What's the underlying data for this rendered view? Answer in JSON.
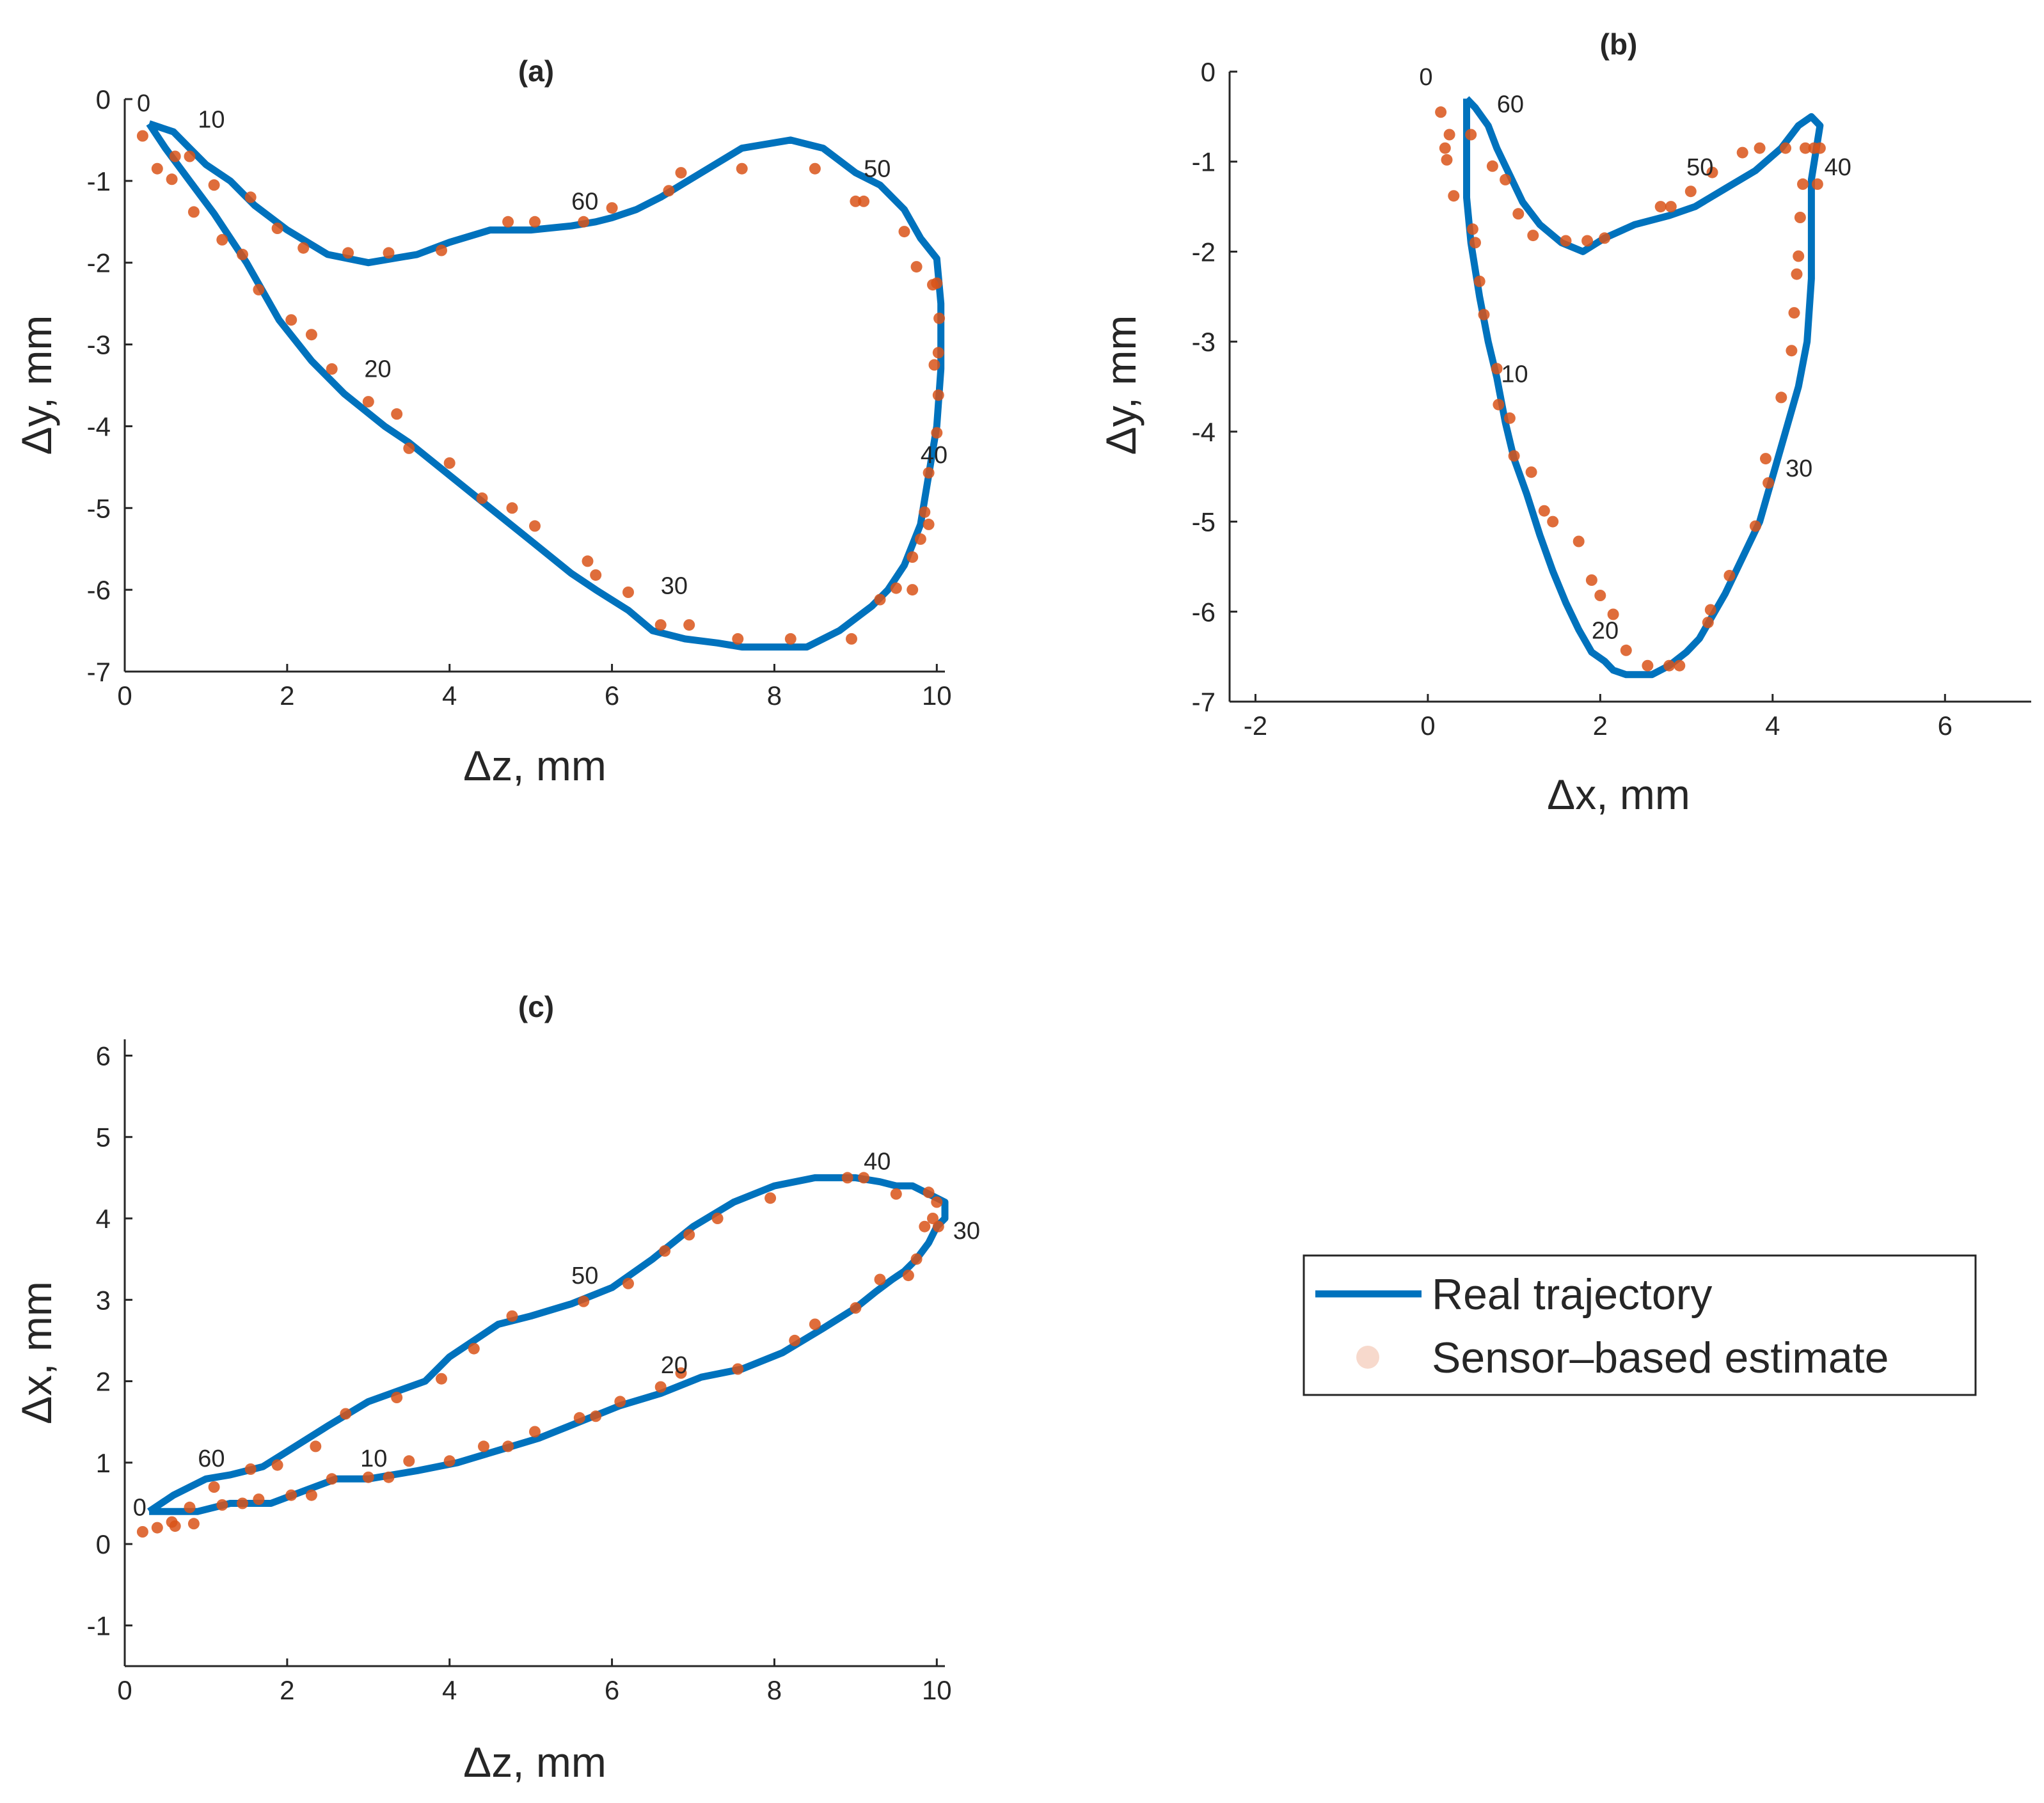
{
  "colors": {
    "real_trajectory": "#0072BD",
    "sensor_estimate": "#D95319",
    "axes": "#262626",
    "background": "#ffffff"
  },
  "legend": {
    "real_label": "Real trajectory",
    "estimate_label": "Sensor–based estimate"
  },
  "chart_data": [
    {
      "panel": "a",
      "type": "line",
      "title": "(a)",
      "xlabel": "Δz, mm",
      "ylabel": "Δy, mm",
      "xlim": [
        0,
        10.1
      ],
      "ylim": [
        -7,
        0
      ],
      "xticks": [
        0,
        2,
        4,
        6,
        8,
        10
      ],
      "yticks": [
        0,
        -1,
        -2,
        -3,
        -4,
        -5,
        -6,
        -7
      ],
      "series": [
        {
          "name": "Real trajectory",
          "kind": "line",
          "x": [
            0.3,
            0.6,
            0.8,
            1.0,
            1.3,
            1.6,
            2.0,
            2.5,
            3.0,
            3.6,
            4.0,
            4.5,
            5.0,
            5.5,
            5.8,
            6.0,
            6.3,
            6.6,
            7.1,
            7.6,
            8.2,
            8.6,
            9.0,
            9.3,
            9.6,
            9.8,
            10.0,
            10.05,
            10.05,
            10.0,
            9.9,
            9.8,
            9.6,
            9.4,
            9.2,
            9.0,
            8.8,
            8.4,
            8.0,
            7.6,
            7.3,
            6.9,
            6.5,
            6.2,
            5.8,
            5.5,
            5.0,
            4.5,
            4.0,
            3.5,
            3.2,
            2.7,
            2.3,
            1.9,
            1.5,
            1.1,
            0.8,
            0.5,
            0.3
          ],
          "y": [
            -0.3,
            -0.4,
            -0.6,
            -0.8,
            -1.0,
            -1.3,
            -1.6,
            -1.9,
            -2.0,
            -1.9,
            -1.75,
            -1.6,
            -1.6,
            -1.55,
            -1.5,
            -1.45,
            -1.35,
            -1.2,
            -0.9,
            -0.6,
            -0.5,
            -0.6,
            -0.9,
            -1.05,
            -1.35,
            -1.7,
            -1.95,
            -2.5,
            -3.3,
            -4.0,
            -4.6,
            -5.2,
            -5.7,
            -6.0,
            -6.2,
            -6.35,
            -6.5,
            -6.7,
            -6.7,
            -6.7,
            -6.65,
            -6.6,
            -6.5,
            -6.25,
            -6.0,
            -5.8,
            -5.4,
            -5.0,
            -4.6,
            -4.2,
            -4.0,
            -3.6,
            -3.2,
            -2.7,
            -2.0,
            -1.4,
            -1.0,
            -0.6,
            -0.3
          ],
          "labels": [
            "0",
            "10",
            "20",
            "30",
            "40",
            "50",
            "60"
          ]
        },
        {
          "name": "Sensor–based estimate",
          "kind": "scatter",
          "x": [
            0.22,
            0.4,
            0.62,
            0.58,
            0.8,
            0.85,
            1.1,
            1.2,
            1.45,
            1.55,
            1.65,
            1.88,
            2.05,
            2.2,
            2.3,
            2.55,
            2.75,
            3.0,
            3.25,
            3.35,
            3.5,
            3.9,
            4.0,
            4.4,
            4.72,
            4.77,
            5.05,
            5.05,
            5.65,
            5.7,
            5.8,
            6.0,
            6.2,
            6.6,
            6.7,
            6.85,
            6.95,
            7.55,
            7.6,
            8.2,
            8.5,
            8.95,
            9.0,
            9.1,
            9.3,
            9.5,
            9.6,
            9.7,
            9.75,
            9.85,
            9.9,
            9.95,
            10.0,
            10.02,
            10.02,
            10.03,
            10.0,
            9.97,
            9.9,
            9.8,
            9.7
          ],
          "y": [
            -0.45,
            -0.85,
            -0.7,
            -0.98,
            -0.7,
            -1.38,
            -1.05,
            -1.72,
            -1.9,
            -1.2,
            -2.33,
            -1.58,
            -2.7,
            -1.82,
            -2.88,
            -3.3,
            -1.88,
            -3.7,
            -1.88,
            -3.85,
            -4.27,
            -1.85,
            -4.45,
            -4.88,
            -1.5,
            -5.0,
            -1.5,
            -5.22,
            -1.5,
            -5.65,
            -5.82,
            -1.33,
            -6.03,
            -6.43,
            -1.12,
            -0.9,
            -6.43,
            -6.6,
            -0.85,
            -6.6,
            -0.85,
            -6.6,
            -1.25,
            -1.25,
            -6.12,
            -5.98,
            -1.62,
            -5.6,
            -2.05,
            -5.05,
            -4.57,
            -2.27,
            -4.08,
            -3.62,
            -3.1,
            -2.68,
            -2.25,
            -3.25,
            -5.2,
            -5.38,
            -6.0
          ]
        }
      ]
    },
    {
      "panel": "b",
      "type": "line",
      "title": "(b)",
      "xlabel": "Δx, mm",
      "ylabel": "Δy, mm",
      "xlim": [
        -2.3,
        7.0
      ],
      "ylim": [
        -7,
        0
      ],
      "xticks": [
        -2,
        0,
        2,
        4,
        6
      ],
      "yticks": [
        0,
        -1,
        -2,
        -3,
        -4,
        -5,
        -6,
        -7
      ],
      "series": [
        {
          "name": "Real trajectory",
          "kind": "line",
          "x": [
            0.45,
            0.55,
            0.7,
            0.8,
            0.95,
            1.1,
            1.3,
            1.55,
            1.8,
            2.05,
            2.4,
            2.8,
            3.1,
            3.45,
            3.8,
            4.1,
            4.3,
            4.45,
            4.55,
            4.45,
            4.45,
            4.4,
            4.3,
            4.15,
            4.0,
            3.85,
            3.65,
            3.45,
            3.3,
            3.15,
            3.0,
            2.8,
            2.6,
            2.3,
            2.15,
            2.05,
            1.9,
            1.75,
            1.6,
            1.45,
            1.3,
            1.15,
            1.0,
            0.9,
            0.8,
            0.7,
            0.6,
            0.5,
            0.45,
            0.45
          ],
          "y": [
            -0.3,
            -0.4,
            -0.6,
            -0.85,
            -1.15,
            -1.45,
            -1.7,
            -1.9,
            -2.0,
            -1.85,
            -1.7,
            -1.6,
            -1.5,
            -1.3,
            -1.1,
            -0.85,
            -0.6,
            -0.5,
            -0.6,
            -1.2,
            -2.3,
            -3.0,
            -3.5,
            -4.0,
            -4.5,
            -5.0,
            -5.4,
            -5.8,
            -6.05,
            -6.3,
            -6.45,
            -6.6,
            -6.7,
            -6.7,
            -6.65,
            -6.55,
            -6.45,
            -6.2,
            -5.9,
            -5.55,
            -5.15,
            -4.7,
            -4.3,
            -3.9,
            -3.4,
            -3.0,
            -2.5,
            -1.9,
            -1.4,
            -0.3
          ],
          "labels": [
            "0",
            "10",
            "20",
            "30",
            "40",
            "50",
            "60"
          ]
        },
        {
          "name": "Sensor–based estimate",
          "kind": "scatter",
          "x": [
            0.15,
            0.2,
            0.25,
            0.22,
            0.3,
            0.5,
            0.52,
            0.55,
            0.6,
            0.65,
            0.75,
            0.8,
            0.82,
            0.9,
            0.95,
            1.0,
            1.05,
            1.2,
            1.22,
            1.35,
            1.45,
            1.6,
            1.75,
            1.85,
            1.9,
            2.0,
            2.05,
            2.15,
            2.3,
            2.55,
            2.7,
            2.8,
            2.82,
            2.92,
            3.05,
            3.25,
            3.28,
            3.3,
            3.5,
            3.65,
            3.8,
            3.85,
            3.95,
            3.92,
            4.1,
            4.15,
            4.22,
            4.25,
            4.28,
            4.3,
            4.32,
            4.35,
            4.38,
            4.48,
            4.52,
            4.55
          ],
          "y": [
            -0.45,
            -0.85,
            -0.7,
            -0.98,
            -1.38,
            -0.7,
            -1.75,
            -1.9,
            -2.33,
            -2.7,
            -1.05,
            -3.3,
            -3.7,
            -1.2,
            -3.85,
            -4.27,
            -1.58,
            -4.45,
            -1.82,
            -4.88,
            -5.0,
            -1.88,
            -5.22,
            -1.88,
            -5.65,
            -5.82,
            -1.85,
            -6.03,
            -6.43,
            -6.6,
            -1.5,
            -6.6,
            -1.5,
            -6.6,
            -1.33,
            -6.12,
            -5.98,
            -1.12,
            -5.6,
            -0.9,
            -5.05,
            -0.85,
            -4.57,
            -4.3,
            -3.62,
            -0.85,
            -3.1,
            -2.68,
            -2.25,
            -2.05,
            -1.62,
            -1.25,
            -0.85,
            -0.85,
            -1.25,
            -0.85
          ]
        }
      ]
    },
    {
      "panel": "c",
      "type": "line",
      "title": "(c)",
      "xlabel": "Δz, mm",
      "ylabel": "Δx, mm",
      "xlim": [
        0,
        10.1
      ],
      "ylim": [
        -1.5,
        6.2
      ],
      "xticks": [
        0,
        2,
        4,
        6,
        8,
        10
      ],
      "yticks": [
        6,
        5,
        4,
        3,
        2,
        1,
        0,
        -1
      ],
      "series": [
        {
          "name": "Real trajectory",
          "kind": "line",
          "x": [
            0.3,
            0.6,
            1.0,
            1.3,
            1.7,
            2.1,
            2.5,
            3.0,
            3.7,
            4.0,
            4.6,
            5.0,
            5.5,
            6.0,
            6.5,
            7.0,
            7.5,
            8.0,
            8.5,
            9.0,
            9.3,
            9.5,
            9.7,
            9.9,
            10.1,
            10.1,
            10.0,
            9.9,
            9.75,
            9.6,
            9.45,
            9.25,
            9.0,
            8.6,
            8.1,
            7.6,
            7.1,
            6.6,
            6.1,
            5.6,
            5.1,
            4.6,
            4.1,
            3.6,
            3.0,
            2.6,
            2.2,
            1.8,
            1.3,
            0.9,
            0.5,
            0.3
          ],
          "y": [
            0.4,
            0.6,
            0.8,
            0.85,
            0.95,
            1.2,
            1.45,
            1.75,
            2.0,
            2.3,
            2.7,
            2.8,
            2.95,
            3.15,
            3.5,
            3.9,
            4.2,
            4.4,
            4.5,
            4.5,
            4.45,
            4.4,
            4.4,
            4.3,
            4.2,
            4.0,
            3.9,
            3.7,
            3.5,
            3.35,
            3.25,
            3.1,
            2.9,
            2.65,
            2.35,
            2.15,
            2.05,
            1.85,
            1.7,
            1.5,
            1.3,
            1.15,
            1.0,
            0.9,
            0.8,
            0.8,
            0.65,
            0.5,
            0.5,
            0.4,
            0.4,
            0.4
          ],
          "labels": [
            "0",
            "10",
            "20",
            "30",
            "40",
            "50",
            "60"
          ]
        },
        {
          "name": "Sensor–based estimate",
          "kind": "scatter",
          "x": [
            0.22,
            0.4,
            0.58,
            0.62,
            0.8,
            0.85,
            1.1,
            1.2,
            1.45,
            1.55,
            1.65,
            1.88,
            2.05,
            2.3,
            2.35,
            2.55,
            2.72,
            3.0,
            3.25,
            3.35,
            3.5,
            3.9,
            4.0,
            4.3,
            4.42,
            4.72,
            4.77,
            5.05,
            5.6,
            5.65,
            5.8,
            6.1,
            6.2,
            6.6,
            6.65,
            6.85,
            6.95,
            7.3,
            7.55,
            7.95,
            8.25,
            8.5,
            8.9,
            9.0,
            9.1,
            9.3,
            9.5,
            9.65,
            9.75,
            9.85,
            9.9,
            9.95,
            10.0,
            10.02
          ],
          "y": [
            0.15,
            0.2,
            0.27,
            0.22,
            0.45,
            0.25,
            0.7,
            0.48,
            0.5,
            0.92,
            0.55,
            0.97,
            0.6,
            0.6,
            1.2,
            0.8,
            1.6,
            0.82,
            0.82,
            1.8,
            1.02,
            2.03,
            1.02,
            2.4,
            1.2,
            1.2,
            2.8,
            1.38,
            1.55,
            2.98,
            1.57,
            1.75,
            3.2,
            1.93,
            3.6,
            2.1,
            3.8,
            4.0,
            2.15,
            4.25,
            2.5,
            2.7,
            4.5,
            2.9,
            4.5,
            3.25,
            4.3,
            3.3,
            3.5,
            3.9,
            4.32,
            4.0,
            4.2,
            3.9
          ]
        }
      ]
    }
  ]
}
